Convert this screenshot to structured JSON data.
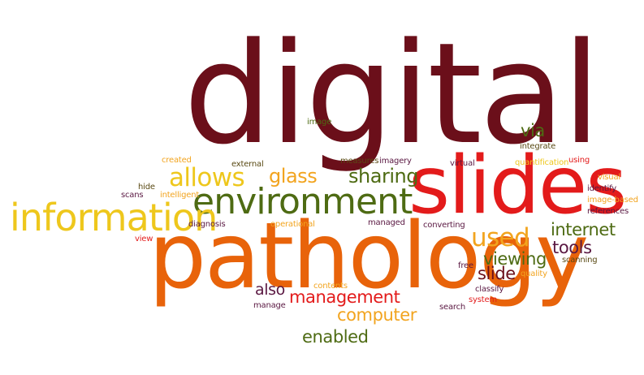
{
  "words": {
    "digital": "digital",
    "slides": "slides",
    "pathology": "pathology",
    "environment": "environment",
    "information": "information",
    "allows": "allows",
    "used": "used",
    "glass": "glass",
    "sharing": "sharing",
    "internet": "internet",
    "tools": "tools",
    "viewing": "viewing",
    "slide": "slide",
    "management": "management",
    "computer": "computer",
    "enabled": "enabled",
    "also": "also",
    "via": "via",
    "image": "image",
    "integrate": "integrate",
    "measures": "measures",
    "imagery": "imagery",
    "virtual": "virtual",
    "quantification": "quantification",
    "using": "using",
    "external": "external",
    "created": "created",
    "hide": "hide",
    "scans": "scans",
    "intelligent": "intelligent",
    "diagnosis": "diagnosis",
    "operational": "operational",
    "view": "view",
    "managed": "managed",
    "converting": "converting",
    "visual": "visual",
    "identify": "identify",
    "image_based": "image-based",
    "references": "references",
    "scanning": "scanning",
    "free": "free",
    "quality": "quality",
    "classify": "classify",
    "contents": "contents",
    "search": "search",
    "system": "system",
    "manage": "manage"
  }
}
